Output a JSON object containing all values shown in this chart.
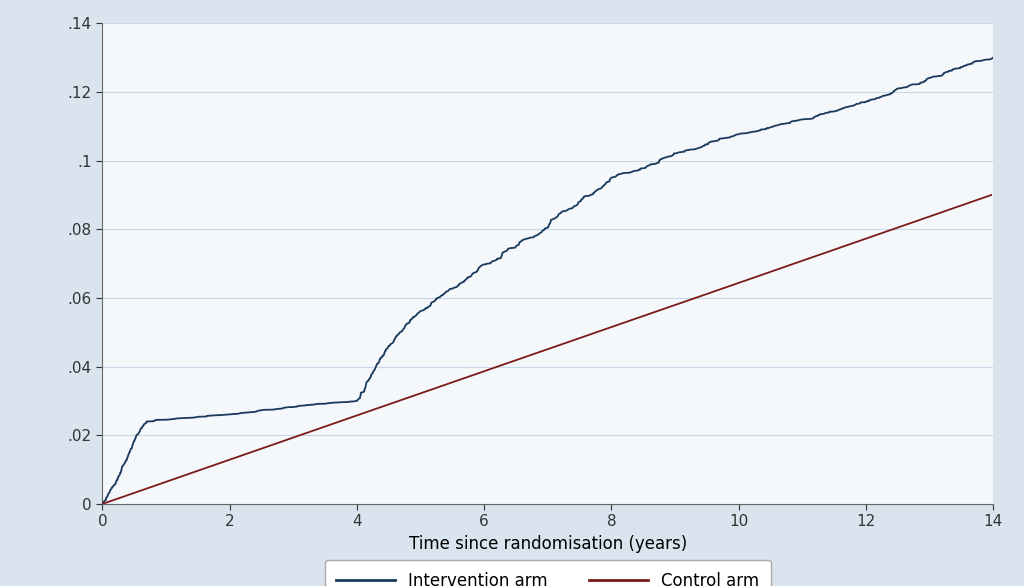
{
  "title": "",
  "xlabel": "Time since randomisation (years)",
  "ylabel": "",
  "xlim": [
    0,
    14
  ],
  "ylim": [
    0,
    0.14
  ],
  "yticks": [
    0,
    0.02,
    0.04,
    0.06,
    0.08,
    0.1,
    0.12,
    0.14
  ],
  "ytick_labels": [
    "0",
    ".02",
    ".04",
    ".06",
    ".08",
    ".1",
    ".12",
    ".14"
  ],
  "xticks": [
    0,
    2,
    4,
    6,
    8,
    10,
    12,
    14
  ],
  "background_color": "#d9e4ee",
  "plot_background_color": "#f5f8fb",
  "intervention_color": "#1a3a5c",
  "control_color": "#7a1a1a",
  "legend_label_intervention": "Intervention arm",
  "legend_label_control": "Control arm",
  "linewidth": 1.3,
  "grid_color": "#c8d8e8"
}
